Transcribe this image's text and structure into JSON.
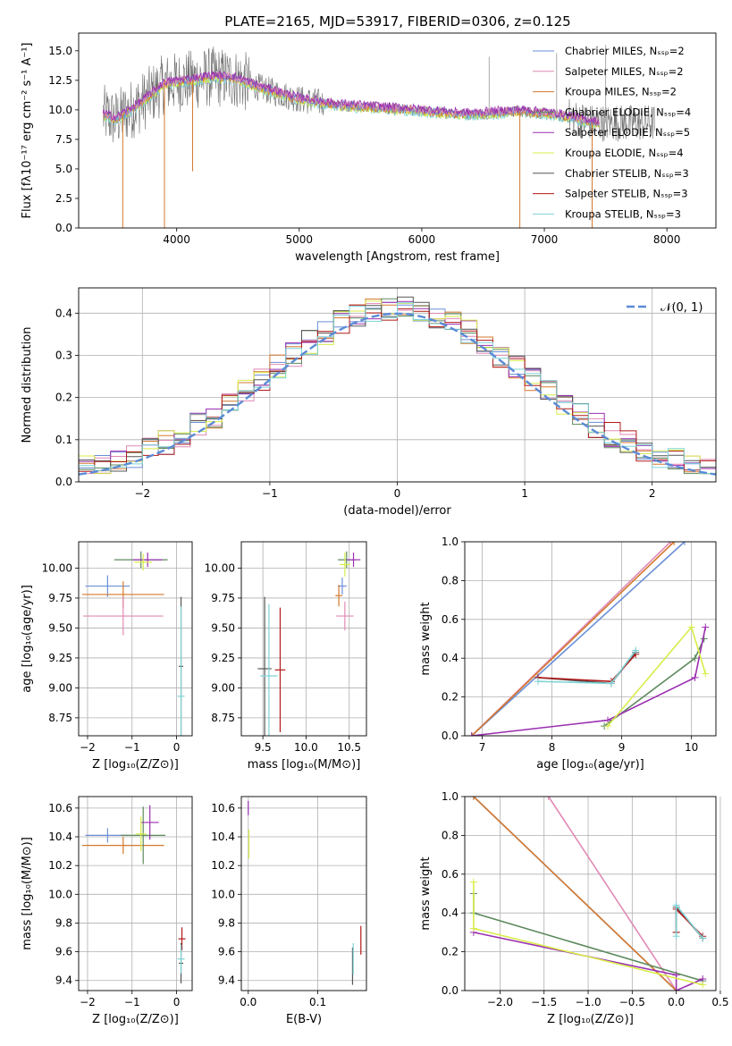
{
  "title": "PLATE=2165, MJD=53917, FIBERID=0306, z=0.125",
  "colors": {
    "blue": "#6a8fd8",
    "pink": "#e08ab5",
    "orange": "#d4792e",
    "green": "#5e8a5e",
    "purple": "#9a2fb0",
    "yellow": "#d8ec4a",
    "gray": "#555555",
    "red": "#b11a1a",
    "cyan": "#7fd3d6",
    "normal": "#5b8bd6"
  },
  "chart_data": [
    {
      "id": "spectrum",
      "type": "line",
      "xlabel": "wavelength [Angstrom, rest frame]",
      "ylabel": "Flux [fλ10⁻¹⁷ erg cm⁻² s⁻¹ A⁻¹]",
      "xlim": [
        3200,
        8400
      ],
      "ylim": [
        0,
        16.5
      ],
      "xticks": [
        4000,
        5000,
        6000,
        7000,
        8000
      ],
      "yticks": [
        0.0,
        2.5,
        5.0,
        7.5,
        10.0,
        12.5,
        15.0
      ],
      "legend": [
        "Chabrier MILES, Nₛₛₚ=2",
        "Salpeter MILES, Nₛₛₚ=2",
        "Kroupa MILES, Nₛₛₚ=2",
        "Chabrier ELODIE, Nₛₛₚ=4",
        "Salpeter ELODIE, Nₛₛₚ=5",
        "Kroupa ELODIE, Nₛₛₚ=4",
        "Chabrier STELIB, Nₛₛₚ=3",
        "Salpeter STELIB, Nₛₛₚ=3",
        "Kroupa STELIB, Nₛₛₚ=3"
      ],
      "legend_colors": [
        "blue",
        "pink",
        "orange",
        "green",
        "purple",
        "yellow",
        "gray",
        "red",
        "cyan"
      ],
      "legend_placement": "upper-right",
      "continuum": {
        "x": [
          3400,
          3500,
          3700,
          3900,
          4100,
          4300,
          4500,
          4700,
          5000,
          5300,
          5600,
          6000,
          6400,
          6800,
          7000,
          7200,
          7400
        ],
        "y": [
          9.6,
          9.2,
          10.5,
          12.2,
          12.5,
          12.8,
          12.6,
          11.8,
          10.9,
          10.4,
          10.2,
          9.9,
          9.6,
          9.9,
          9.7,
          9.4,
          8.9
        ]
      },
      "data_end": 7900,
      "model_end": 7450,
      "spikes": [
        {
          "x": 3560,
          "y": 0
        },
        {
          "x": 3900,
          "y": 0
        },
        {
          "x": 6800,
          "y": 0
        },
        {
          "x": 7390,
          "y": 0
        },
        {
          "x": 4130,
          "y": 4.8
        },
        {
          "x": 6550,
          "y": 14.5
        },
        {
          "x": 7100,
          "y": 14.8
        },
        {
          "x": 7500,
          "y": 15.5
        }
      ]
    },
    {
      "id": "residuals",
      "type": "histogram",
      "xlabel": "(data-model)/error",
      "ylabel": "Normed distribution",
      "xlim": [
        -2.5,
        2.5
      ],
      "ylim": [
        0,
        0.46
      ],
      "xticks": [
        -2,
        -1,
        0,
        1,
        2
      ],
      "yticks": [
        0.0,
        0.1,
        0.2,
        0.3,
        0.4
      ],
      "grid": true,
      "bins": 40,
      "legend": "𝒩(0, 1)",
      "legend_placement": "upper-right"
    },
    {
      "id": "age_vs_Z",
      "type": "errorbar",
      "xlabel": "Z [log₁₀(Z/Z⊙)]",
      "ylabel": "age  [log₁₀(age/yr)]",
      "xlim": [
        -2.2,
        0.35
      ],
      "ylim": [
        8.6,
        10.22
      ],
      "xticks": [
        -2,
        -1,
        0
      ],
      "yticks": [
        8.75,
        9.0,
        9.25,
        9.5,
        9.75,
        10.0
      ],
      "grid": true,
      "points": [
        {
          "c": "blue",
          "x": -1.55,
          "xe": 0.5,
          "y": 9.85,
          "ye": 0.09
        },
        {
          "c": "orange",
          "x": -1.2,
          "xe": 0.92,
          "y": 9.78,
          "ye": 0.11
        },
        {
          "c": "pink",
          "x": -1.2,
          "xe": 0.9,
          "y": 9.6,
          "ye": 0.16
        },
        {
          "c": "green",
          "x": -0.8,
          "xe": 0.6,
          "y": 10.07,
          "ye": 0.07
        },
        {
          "c": "purple",
          "x": -0.65,
          "xe": 0.33,
          "y": 10.07,
          "ye": 0.06
        },
        {
          "c": "yellow",
          "x": -0.75,
          "xe": 0.2,
          "y": 10.05,
          "ye": 0.07
        },
        {
          "c": "gray",
          "x": 0.1,
          "xe": 0.05,
          "y": 9.18,
          "ye": 0.58
        },
        {
          "c": "cyan",
          "x": 0.1,
          "xe": 0.08,
          "y": 8.93,
          "ye": 0.75
        }
      ]
    },
    {
      "id": "age_vs_mass",
      "type": "errorbar",
      "xlabel": "mass [log₁₀(M/M⊙)]",
      "ylabel": "",
      "xlim": [
        9.25,
        10.7
      ],
      "ylim": [
        8.6,
        10.22
      ],
      "xticks": [
        9.5,
        10.0,
        10.5
      ],
      "yticks": [
        8.75,
        9.0,
        9.25,
        9.5,
        9.75,
        10.0
      ],
      "grid": true,
      "points": [
        {
          "c": "blue",
          "x": 10.42,
          "xe": 0.05,
          "y": 9.85,
          "ye": 0.07
        },
        {
          "c": "orange",
          "x": 10.38,
          "xe": 0.04,
          "y": 9.77,
          "ye": 0.09
        },
        {
          "c": "pink",
          "x": 10.45,
          "xe": 0.1,
          "y": 9.6,
          "ye": 0.12
        },
        {
          "c": "green",
          "x": 10.47,
          "xe": 0.1,
          "y": 10.07,
          "ye": 0.07
        },
        {
          "c": "purple",
          "x": 10.55,
          "xe": 0.08,
          "y": 10.07,
          "ye": 0.06
        },
        {
          "c": "yellow",
          "x": 10.45,
          "xe": 0.06,
          "y": 10.03,
          "ye": 0.1
        },
        {
          "c": "gray",
          "x": 9.52,
          "xe": 0.08,
          "y": 9.16,
          "ye": 0.6
        },
        {
          "c": "red",
          "x": 9.7,
          "xe": 0.06,
          "y": 9.15,
          "ye": 0.52
        },
        {
          "c": "cyan",
          "x": 9.57,
          "xe": 0.1,
          "y": 9.1,
          "ye": 0.6
        }
      ]
    },
    {
      "id": "weight_vs_age",
      "type": "line",
      "xlabel": "age  [log₁₀(age/yr)]",
      "ylabel": "mass weight",
      "xlim": [
        6.75,
        10.35
      ],
      "ylim": [
        0,
        1.0
      ],
      "xticks": [
        7,
        8,
        9,
        10
      ],
      "yticks": [
        0.0,
        0.2,
        0.4,
        0.6,
        0.8,
        1.0
      ],
      "grid": true,
      "series": [
        {
          "c": "blue",
          "x": [
            6.85,
            9.9
          ],
          "y": [
            0.0,
            1.0
          ]
        },
        {
          "c": "pink",
          "x": [
            6.85,
            9.7
          ],
          "y": [
            0.0,
            1.0
          ]
        },
        {
          "c": "orange",
          "x": [
            6.85,
            9.75
          ],
          "y": [
            0.0,
            1.0
          ]
        },
        {
          "c": "gray",
          "x": [
            7.8,
            8.85,
            9.2
          ],
          "y": [
            0.3,
            0.27,
            0.43
          ]
        },
        {
          "c": "red",
          "x": [
            7.8,
            8.85,
            9.2
          ],
          "y": [
            0.3,
            0.28,
            0.42
          ]
        },
        {
          "c": "cyan",
          "x": [
            7.8,
            8.85,
            9.2
          ],
          "y": [
            0.28,
            0.27,
            0.44
          ]
        },
        {
          "c": "green",
          "x": [
            8.75,
            10.05,
            10.18
          ],
          "y": [
            0.05,
            0.4,
            0.5
          ]
        },
        {
          "c": "purple",
          "x": [
            6.85,
            8.8,
            10.05,
            10.2
          ],
          "y": [
            0.0,
            0.08,
            0.3,
            0.56
          ]
        },
        {
          "c": "yellow",
          "x": [
            8.8,
            10.0,
            10.2
          ],
          "y": [
            0.05,
            0.56,
            0.32
          ]
        }
      ]
    },
    {
      "id": "mass_vs_Z",
      "type": "errorbar",
      "xlabel": "Z [log₁₀(Z/Z⊙)]",
      "ylabel": "mass [log₁₀(M/M⊙)]",
      "xlim": [
        -2.2,
        0.35
      ],
      "ylim": [
        9.33,
        10.68
      ],
      "xticks": [
        -2,
        -1,
        0
      ],
      "yticks": [
        9.4,
        9.6,
        9.8,
        10.0,
        10.2,
        10.4,
        10.6
      ],
      "grid": true,
      "points": [
        {
          "c": "blue",
          "x": -1.55,
          "xe": 0.5,
          "y": 10.41,
          "ye": 0.05
        },
        {
          "c": "orange",
          "x": -1.2,
          "xe": 0.92,
          "y": 10.34,
          "ye": 0.06
        },
        {
          "c": "green",
          "x": -0.75,
          "xe": 0.5,
          "y": 10.41,
          "ye": 0.2
        },
        {
          "c": "purple",
          "x": -0.6,
          "xe": 0.2,
          "y": 10.5,
          "ye": 0.12
        },
        {
          "c": "yellow",
          "x": -0.8,
          "xe": 0.12,
          "y": 10.42,
          "ye": 0.12
        },
        {
          "c": "red",
          "x": 0.12,
          "xe": 0.08,
          "y": 9.69,
          "ye": 0.08
        },
        {
          "c": "gray",
          "x": 0.1,
          "xe": 0.05,
          "y": 9.52,
          "ye": 0.14
        },
        {
          "c": "cyan",
          "x": 0.1,
          "xe": 0.08,
          "y": 9.55,
          "ye": 0.1
        }
      ]
    },
    {
      "id": "mass_vs_ebv",
      "type": "errorbar",
      "xlabel": "E(B-V)",
      "ylabel": "",
      "xlim": [
        -0.01,
        0.17
      ],
      "ylim": [
        9.33,
        10.68
      ],
      "xticks": [
        0.0,
        0.1
      ],
      "yticks": [
        9.4,
        9.6,
        9.8,
        10.0,
        10.2,
        10.4,
        10.6
      ],
      "grid": true,
      "points": [
        {
          "c": "purple",
          "x": 0.0,
          "xe": 0,
          "y": 10.6,
          "ye": 0.05
        },
        {
          "c": "yellow",
          "x": 0.001,
          "xe": 0,
          "y": 10.35,
          "ye": 0.1
        },
        {
          "c": "gray",
          "x": 0.15,
          "xe": 0,
          "y": 9.5,
          "ye": 0.13
        },
        {
          "c": "cyan",
          "x": 0.151,
          "xe": 0,
          "y": 9.55,
          "ye": 0.11
        },
        {
          "c": "red",
          "x": 0.162,
          "xe": 0,
          "y": 9.68,
          "ye": 0.1
        }
      ]
    },
    {
      "id": "weight_vs_Z",
      "type": "line",
      "xlabel": "Z [log₁₀(Z/Z⊙)]",
      "ylabel": "mass weight",
      "xlim": [
        -2.4,
        0.45
      ],
      "ylim": [
        0,
        1.0
      ],
      "xticks": [
        -2.0,
        -1.5,
        -1.0,
        -0.5,
        0.0,
        0.5
      ],
      "yticks": [
        0.0,
        0.2,
        0.4,
        0.6,
        0.8,
        1.0
      ],
      "grid": true,
      "series": [
        {
          "c": "blue",
          "x": [
            -2.3,
            0.0
          ],
          "y": [
            1.0,
            0.0
          ]
        },
        {
          "c": "pink",
          "x": [
            -1.45,
            0.0
          ],
          "y": [
            1.0,
            0.0
          ]
        },
        {
          "c": "orange",
          "x": [
            -2.3,
            0.0
          ],
          "y": [
            1.0,
            0.0
          ]
        },
        {
          "c": "gray",
          "x": [
            0.0,
            0.0,
            0.3
          ],
          "y": [
            0.3,
            0.43,
            0.27
          ]
        },
        {
          "c": "red",
          "x": [
            0.0,
            0.0,
            0.3
          ],
          "y": [
            0.3,
            0.42,
            0.28
          ]
        },
        {
          "c": "cyan",
          "x": [
            0.0,
            0.0,
            0.3
          ],
          "y": [
            0.28,
            0.44,
            0.27
          ]
        },
        {
          "c": "green",
          "x": [
            -2.3,
            -2.3,
            0.3
          ],
          "y": [
            0.5,
            0.4,
            0.05
          ]
        },
        {
          "c": "purple",
          "x": [
            -2.3,
            0.0,
            0.0,
            0.3
          ],
          "y": [
            0.3,
            0.08,
            0.0,
            0.06
          ]
        },
        {
          "c": "yellow",
          "x": [
            -2.3,
            -2.3,
            0.3
          ],
          "y": [
            0.56,
            0.32,
            0.03
          ]
        }
      ]
    }
  ]
}
